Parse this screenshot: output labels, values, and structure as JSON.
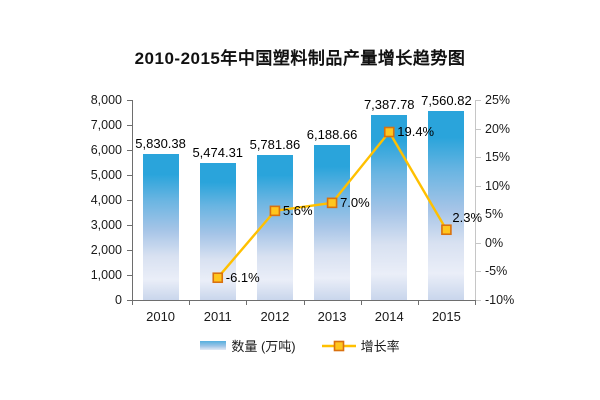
{
  "chart_data": {
    "type": "bar",
    "subtype": "combo-bar-line",
    "title": "2010-2015年中国塑料制品产量增长趋势图",
    "categories": [
      "2010",
      "2011",
      "2012",
      "2013",
      "2014",
      "2015"
    ],
    "series": [
      {
        "name": "数量 (万吨)",
        "type": "bar",
        "axis": "left",
        "values": [
          5830.38,
          5474.31,
          5781.86,
          6188.66,
          7387.78,
          7560.82
        ],
        "labels": [
          "5,830.38",
          "5,474.31",
          "5,781.86",
          "6,188.66",
          "7,387.78",
          "7,560.82"
        ]
      },
      {
        "name": "增长率",
        "type": "line",
        "axis": "right",
        "values": [
          null,
          -6.1,
          5.6,
          7.0,
          19.4,
          2.3
        ],
        "labels": [
          null,
          "-6.1%",
          "5.6%",
          "7.0%",
          "19.4%",
          "2.3%"
        ]
      }
    ],
    "left_axis": {
      "min": 0,
      "max": 8000,
      "tick_labels": [
        "8,000",
        "7,000",
        "6,000",
        "5,000",
        "4,000",
        "3,000",
        "2,000",
        "1,000",
        "0"
      ]
    },
    "right_axis": {
      "min": -10,
      "max": 25,
      "tick_labels": [
        "25%",
        "20%",
        "15%",
        "10%",
        "5%",
        "0%",
        "-5%",
        "-10%"
      ]
    },
    "grid": false,
    "legend_position": "bottom",
    "colors": {
      "bar_top": "#2AA4DB",
      "bar_mid": "#A5C4E7",
      "bar_light": "#EAEEF8",
      "bar_bottom": "#C9D6EC",
      "line": "#FFC000",
      "marker_fill": "#FFC61E",
      "marker_border": "#D9710F",
      "axis_dark": "#6E6E6E",
      "axis_light": "#C6C6C6",
      "text": "#1a1a1a"
    }
  }
}
